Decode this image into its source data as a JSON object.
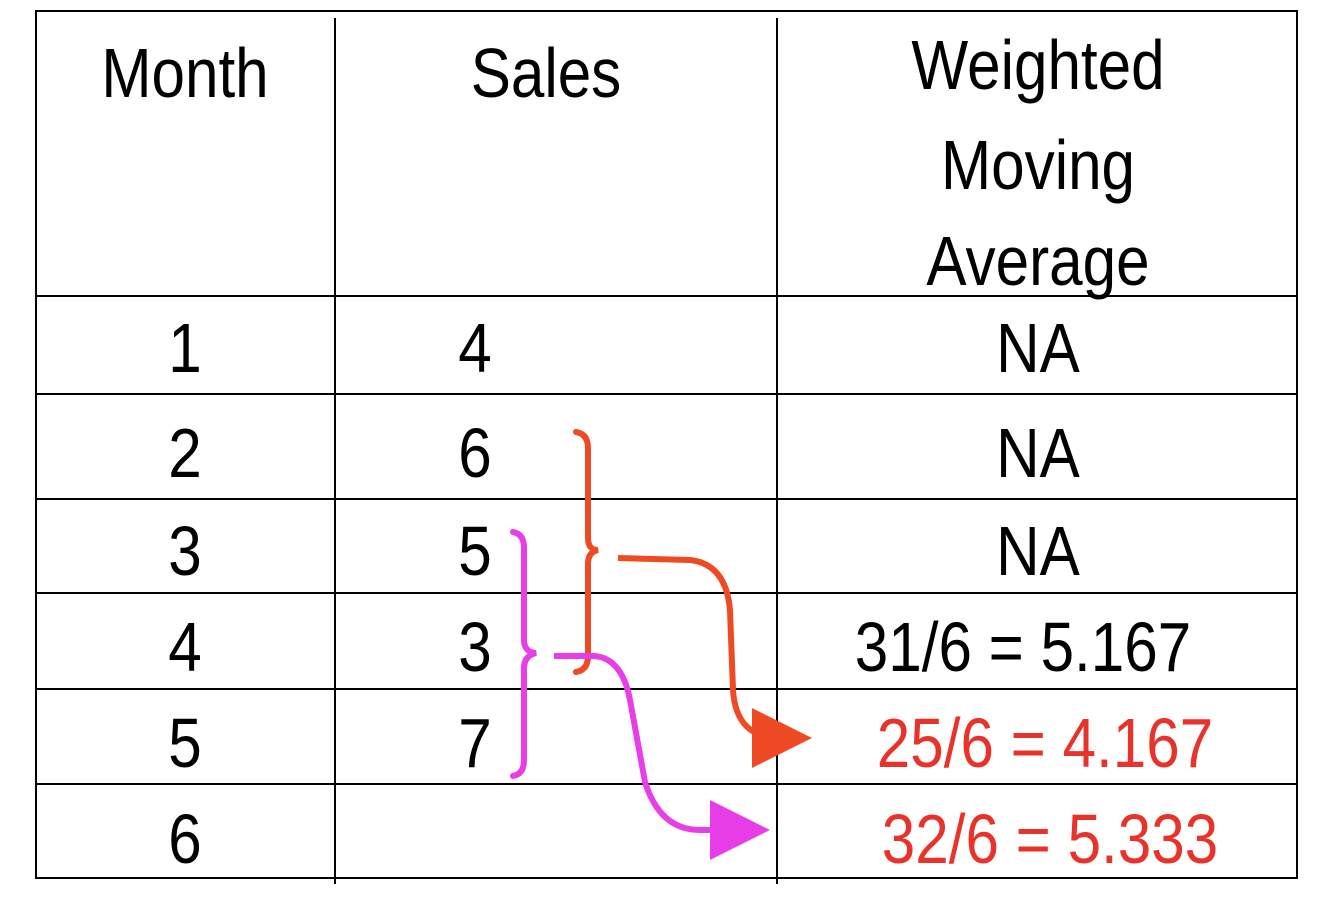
{
  "table": {
    "headers": {
      "month": "Month",
      "sales": "Sales",
      "wma_line1": "Weighted",
      "wma_line2": "Moving",
      "wma_line3": "Average"
    },
    "rows": [
      {
        "month": "1",
        "sales": "4",
        "wma": "NA"
      },
      {
        "month": "2",
        "sales": "6",
        "wma": "NA"
      },
      {
        "month": "3",
        "sales": "5",
        "wma": "NA"
      },
      {
        "month": "4",
        "sales": "3",
        "wma": "31/6 = 5.167"
      },
      {
        "month": "5",
        "sales": "7",
        "wma": "25/6 = 4.167"
      },
      {
        "month": "6",
        "sales": "",
        "wma": "32/6 = 5.333"
      }
    ]
  },
  "colors": {
    "highlight_text": "#e8322a",
    "bracket_orange": "#ee4a23",
    "bracket_magenta": "#e83ee8"
  }
}
